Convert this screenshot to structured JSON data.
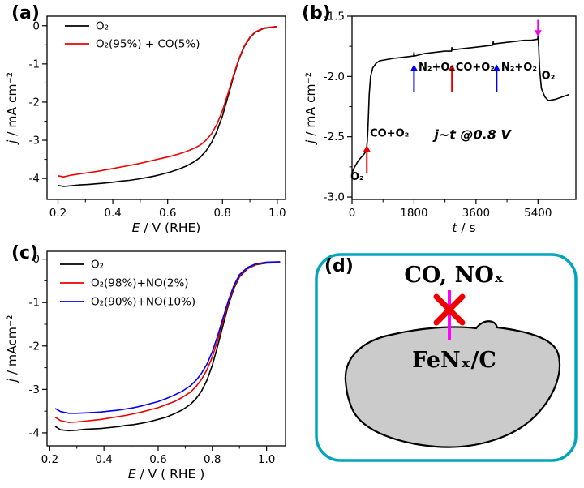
{
  "figure": {
    "bg_color": "#ffffff",
    "panels": {
      "a": {
        "label": "(a)"
      },
      "b": {
        "label": "(b)"
      },
      "c": {
        "label": "(c)"
      },
      "d": {
        "label": "(d)"
      }
    }
  },
  "chart_data": [
    {
      "panel": "a",
      "type": "line",
      "xlabel_segments": [
        {
          "t": "E",
          "i": true
        },
        {
          "t": " / V (RHE)",
          "i": false
        }
      ],
      "ylabel_segments": [
        {
          "t": "j",
          "i": true
        },
        {
          "t": " / mA cm⁻²",
          "i": false
        }
      ],
      "xlim": [
        0.16,
        1.03
      ],
      "ylim": [
        -4.55,
        0.25
      ],
      "xticks": {
        "values": [
          0.2,
          0.4,
          0.6,
          0.8,
          1.0
        ],
        "labels": [
          "0.2",
          "0.4",
          "0.6",
          "0.8",
          "1.0"
        ],
        "minor": [
          0.3,
          0.5,
          0.7,
          0.9
        ]
      },
      "yticks": {
        "values": [
          0,
          -1,
          -2,
          -3,
          -4
        ],
        "labels": [
          "0",
          "-1",
          "-2",
          "-3",
          "-4"
        ],
        "minor": [
          -0.5,
          -1.5,
          -2.5,
          -3.5
        ]
      },
      "legend": {
        "entries": [
          {
            "label": "O₂",
            "color": "#000000"
          },
          {
            "label": "O₂(95%) + CO(5%)",
            "color": "#ee0000"
          }
        ]
      },
      "series": [
        {
          "name": "O₂",
          "color": "#000000",
          "x": [
            0.2,
            0.22,
            0.25,
            0.28,
            0.31,
            0.34,
            0.37,
            0.4,
            0.43,
            0.46,
            0.49,
            0.52,
            0.55,
            0.58,
            0.61,
            0.64,
            0.67,
            0.7,
            0.72,
            0.74,
            0.76,
            0.78,
            0.8,
            0.82,
            0.84,
            0.86,
            0.88,
            0.9,
            0.92,
            0.95,
            1.0
          ],
          "y": [
            -4.18,
            -4.21,
            -4.19,
            -4.17,
            -4.16,
            -4.14,
            -4.12,
            -4.1,
            -4.07,
            -4.05,
            -4.02,
            -3.98,
            -3.94,
            -3.89,
            -3.83,
            -3.76,
            -3.67,
            -3.55,
            -3.44,
            -3.28,
            -3.06,
            -2.76,
            -2.36,
            -1.86,
            -1.34,
            -0.88,
            -0.54,
            -0.31,
            -0.17,
            -0.07,
            -0.02
          ]
        },
        {
          "name": "O₂(95%) + CO(5%)",
          "color": "#ee0000",
          "x": [
            0.2,
            0.22,
            0.25,
            0.28,
            0.31,
            0.34,
            0.37,
            0.4,
            0.43,
            0.46,
            0.49,
            0.52,
            0.55,
            0.58,
            0.61,
            0.64,
            0.67,
            0.7,
            0.72,
            0.74,
            0.76,
            0.78,
            0.8,
            0.82,
            0.84,
            0.86,
            0.88,
            0.9,
            0.92,
            0.95,
            1.0
          ],
          "y": [
            -3.93,
            -3.96,
            -3.91,
            -3.88,
            -3.85,
            -3.82,
            -3.78,
            -3.74,
            -3.7,
            -3.66,
            -3.62,
            -3.57,
            -3.52,
            -3.47,
            -3.42,
            -3.36,
            -3.29,
            -3.2,
            -3.12,
            -3.0,
            -2.83,
            -2.58,
            -2.22,
            -1.78,
            -1.3,
            -0.86,
            -0.52,
            -0.3,
            -0.16,
            -0.06,
            -0.02
          ]
        }
      ]
    },
    {
      "panel": "b",
      "type": "line",
      "xlabel_segments": [
        {
          "t": "t",
          "i": true
        },
        {
          "t": " / s",
          "i": false
        }
      ],
      "ylabel_segments": [
        {
          "t": "j",
          "i": true
        },
        {
          "t": " / mA cm⁻²",
          "i": false
        }
      ],
      "xlim": [
        0,
        6500
      ],
      "ylim": [
        -3.02,
        -1.5
      ],
      "xticks": {
        "values": [
          0,
          1800,
          3600,
          5400
        ],
        "labels": [
          "0",
          "1800",
          "3600",
          "5400"
        ],
        "minor": [
          900,
          2700,
          4500,
          6300
        ]
      },
      "yticks": {
        "values": [
          -1.5,
          -2.0,
          -2.5,
          -3.0
        ],
        "labels": [
          "-1.5",
          "-2.0",
          "-2.5",
          "-3.0"
        ],
        "minor": [
          -1.75,
          -2.25,
          -2.75
        ]
      },
      "series": [
        {
          "name": "j-t at 0.8 V",
          "color": "#000000",
          "x": [
            0,
            60,
            120,
            180,
            240,
            300,
            360,
            400,
            420,
            440,
            460,
            480,
            500,
            540,
            600,
            700,
            800,
            1000,
            1200,
            1500,
            1790,
            1800,
            1810,
            2100,
            2400,
            2700,
            2890,
            2900,
            2910,
            3200,
            3500,
            3800,
            4090,
            4100,
            4110,
            4400,
            4700,
            5000,
            5200,
            5390,
            5400,
            5420,
            5450,
            5500,
            5600,
            5700,
            5900,
            6100,
            6300
          ],
          "y": [
            -2.8,
            -2.76,
            -2.73,
            -2.7,
            -2.68,
            -2.66,
            -2.64,
            -2.62,
            -2.6,
            -2.55,
            -2.45,
            -2.3,
            -2.15,
            -2.0,
            -1.93,
            -1.89,
            -1.87,
            -1.86,
            -1.85,
            -1.84,
            -1.83,
            -1.8,
            -1.83,
            -1.81,
            -1.8,
            -1.79,
            -1.79,
            -1.76,
            -1.78,
            -1.77,
            -1.76,
            -1.75,
            -1.74,
            -1.71,
            -1.73,
            -1.72,
            -1.71,
            -1.7,
            -1.7,
            -1.69,
            -1.66,
            -1.75,
            -1.95,
            -2.1,
            -2.17,
            -2.2,
            -2.19,
            -2.17,
            -2.15
          ]
        }
      ],
      "annotations": {
        "texts": [
          {
            "t": "O₂",
            "x": 150,
            "y": -2.86,
            "color": "#ee00ee",
            "size": 13,
            "anchor": "middle",
            "bold": true
          },
          {
            "t": "CO+O₂",
            "x": 520,
            "y": -2.5,
            "color": "#ee0000",
            "size": 13,
            "anchor": "start",
            "bold": true
          },
          {
            "t": "N₂+O₂",
            "x": 1930,
            "y": -1.95,
            "color": "#0000ee",
            "size": 13,
            "anchor": "start",
            "bold": true
          },
          {
            "t": "CO+O₂",
            "x": 3010,
            "y": -1.95,
            "color": "#ee0000",
            "size": 13,
            "anchor": "start",
            "bold": true
          },
          {
            "t": "N₂+O₂",
            "x": 4330,
            "y": -1.95,
            "color": "#0000ee",
            "size": 13,
            "anchor": "start",
            "bold": true
          },
          {
            "t": "O₂",
            "x": 5700,
            "y": -2.02,
            "color": "#ee00ee",
            "size": 13,
            "anchor": "middle",
            "bold": true
          },
          {
            "t": "j~t @0.8 V",
            "x": 3500,
            "y": -2.52,
            "color": "#000000",
            "size": 16,
            "anchor": "middle",
            "bold": true,
            "italic": true
          }
        ],
        "arrows": [
          {
            "x": 430,
            "y1": -2.8,
            "y2": -2.57,
            "color": "#ee0000"
          },
          {
            "x": 1800,
            "y1": -2.13,
            "y2": -1.9,
            "color": "#0000ee"
          },
          {
            "x": 2900,
            "y1": -2.13,
            "y2": -1.9,
            "color": "#ee0000"
          },
          {
            "x": 4200,
            "y1": -2.13,
            "y2": -1.9,
            "color": "#0000ee"
          },
          {
            "x": 5400,
            "y1": -1.53,
            "y2": -1.67,
            "color": "#ee00ee"
          }
        ]
      }
    },
    {
      "panel": "c",
      "type": "line",
      "xlabel_segments": [
        {
          "t": "E",
          "i": true
        },
        {
          "t": " / V ( RHE )",
          "i": false
        }
      ],
      "ylabel_segments": [
        {
          "t": "j",
          "i": true
        },
        {
          "t": " / mAcm⁻²",
          "i": false
        }
      ],
      "xlim": [
        0.19,
        1.07
      ],
      "ylim": [
        -4.3,
        0.18
      ],
      "xticks": {
        "values": [
          0.2,
          0.4,
          0.6,
          0.8,
          1.0
        ],
        "labels": [
          "0.2",
          "0.4",
          "0.6",
          "0.8",
          "1.0"
        ],
        "minor": [
          0.3,
          0.5,
          0.7,
          0.9
        ]
      },
      "yticks": {
        "values": [
          0,
          -1,
          -2,
          -3,
          -4
        ],
        "labels": [
          "0",
          "-1",
          "-2",
          "-3",
          "-4"
        ],
        "minor": [
          -0.5,
          -1.5,
          -2.5,
          -3.5
        ]
      },
      "legend": {
        "entries": [
          {
            "label": "O₂",
            "color": "#000000"
          },
          {
            "label": "O₂(98%)+NO(2%)",
            "color": "#ee0000"
          },
          {
            "label": "O₂(90%)+NO(10%)",
            "color": "#0000ee"
          }
        ]
      },
      "series": [
        {
          "name": "O₂",
          "color": "#000000",
          "x": [
            0.22,
            0.24,
            0.27,
            0.3,
            0.33,
            0.36,
            0.39,
            0.42,
            0.45,
            0.48,
            0.51,
            0.54,
            0.57,
            0.6,
            0.63,
            0.66,
            0.69,
            0.72,
            0.74,
            0.76,
            0.78,
            0.8,
            0.82,
            0.84,
            0.86,
            0.88,
            0.9,
            0.93,
            0.96,
            1.0,
            1.05
          ],
          "y": [
            -3.85,
            -3.93,
            -3.95,
            -3.94,
            -3.92,
            -3.91,
            -3.9,
            -3.88,
            -3.86,
            -3.83,
            -3.81,
            -3.78,
            -3.74,
            -3.69,
            -3.64,
            -3.56,
            -3.47,
            -3.34,
            -3.21,
            -3.04,
            -2.79,
            -2.44,
            -1.99,
            -1.51,
            -1.04,
            -0.67,
            -0.41,
            -0.22,
            -0.13,
            -0.09,
            -0.08
          ]
        },
        {
          "name": "O₂(98%)+NO(2%)",
          "color": "#ee0000",
          "x": [
            0.22,
            0.24,
            0.27,
            0.3,
            0.33,
            0.36,
            0.39,
            0.42,
            0.45,
            0.48,
            0.51,
            0.54,
            0.57,
            0.6,
            0.63,
            0.66,
            0.69,
            0.72,
            0.74,
            0.76,
            0.78,
            0.8,
            0.82,
            0.84,
            0.86,
            0.88,
            0.9,
            0.93,
            0.96,
            1.0,
            1.05
          ],
          "y": [
            -3.64,
            -3.72,
            -3.76,
            -3.75,
            -3.73,
            -3.71,
            -3.69,
            -3.66,
            -3.63,
            -3.6,
            -3.56,
            -3.52,
            -3.47,
            -3.42,
            -3.35,
            -3.28,
            -3.18,
            -3.06,
            -2.93,
            -2.77,
            -2.55,
            -2.25,
            -1.86,
            -1.42,
            -0.99,
            -0.64,
            -0.39,
            -0.21,
            -0.12,
            -0.08,
            -0.07
          ]
        },
        {
          "name": "O₂(90%)+NO(10%)",
          "color": "#0000ee",
          "x": [
            0.22,
            0.24,
            0.27,
            0.3,
            0.33,
            0.36,
            0.39,
            0.42,
            0.45,
            0.48,
            0.51,
            0.54,
            0.57,
            0.6,
            0.63,
            0.66,
            0.69,
            0.72,
            0.74,
            0.76,
            0.78,
            0.8,
            0.82,
            0.84,
            0.86,
            0.88,
            0.9,
            0.93,
            0.96,
            1.0,
            1.05
          ],
          "y": [
            -3.44,
            -3.51,
            -3.55,
            -3.55,
            -3.54,
            -3.53,
            -3.52,
            -3.5,
            -3.48,
            -3.45,
            -3.42,
            -3.38,
            -3.33,
            -3.28,
            -3.21,
            -3.13,
            -3.04,
            -2.91,
            -2.79,
            -2.63,
            -2.42,
            -2.13,
            -1.76,
            -1.34,
            -0.94,
            -0.6,
            -0.36,
            -0.19,
            -0.11,
            -0.07,
            -0.06
          ]
        }
      ]
    }
  ],
  "schematic": {
    "top_text": "CO, NOₓ",
    "particle_text": "FeNₓ/C",
    "border_color": "#00a5b8",
    "cross_color": "#ee0000",
    "line_color": "#ff00ff",
    "particle_fill": "#cbcbcb"
  }
}
